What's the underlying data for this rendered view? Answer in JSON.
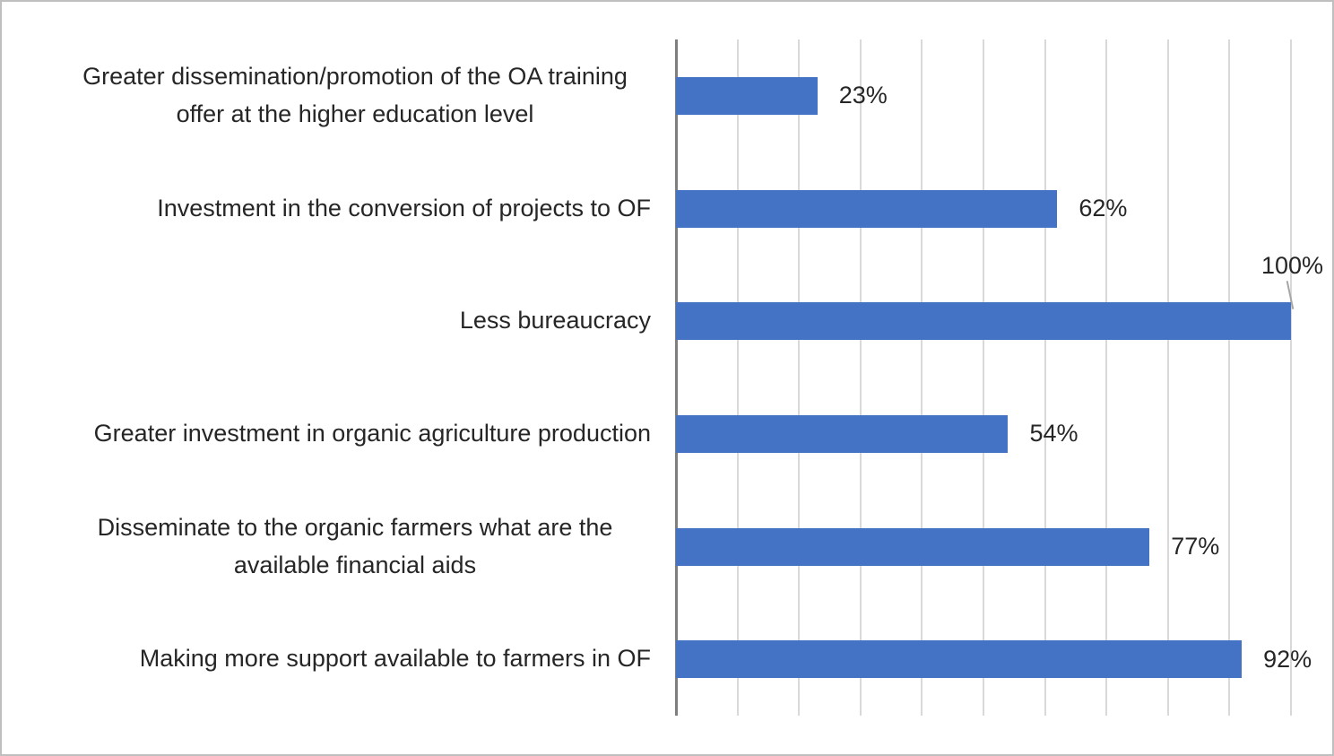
{
  "figure": {
    "background": "#ffffff",
    "border_color": "#bfbfbf"
  },
  "chart_data": {
    "type": "bar",
    "orientation": "horizontal",
    "title": "",
    "xlabel": "",
    "ylabel": "",
    "categories": [
      "Greater dissemination/promotion of the OA training offer at the higher education level",
      "Investment in the conversion of projects to OF",
      "Less bureaucracy",
      "Greater investment in organic agriculture production",
      "Disseminate to the organic farmers what are the available financial aids",
      "Making more support available to farmers in OF"
    ],
    "values": [
      23,
      62,
      100,
      54,
      77,
      92
    ],
    "value_labels": [
      "23%",
      "62%",
      "100%",
      "54%",
      "77%",
      "92%"
    ],
    "xlim": [
      0,
      100
    ],
    "gridline_interval_pct": 10,
    "gridlines": "vertical",
    "legend": "none",
    "bar_color": "#4472c4",
    "gridline_color": "#d9d9d9",
    "axis_line_color": "#7f7f7f",
    "text_color": "#262626",
    "callout": {
      "index": 2,
      "position": "above-right",
      "leader_line_color": "#a6a6a6"
    }
  }
}
